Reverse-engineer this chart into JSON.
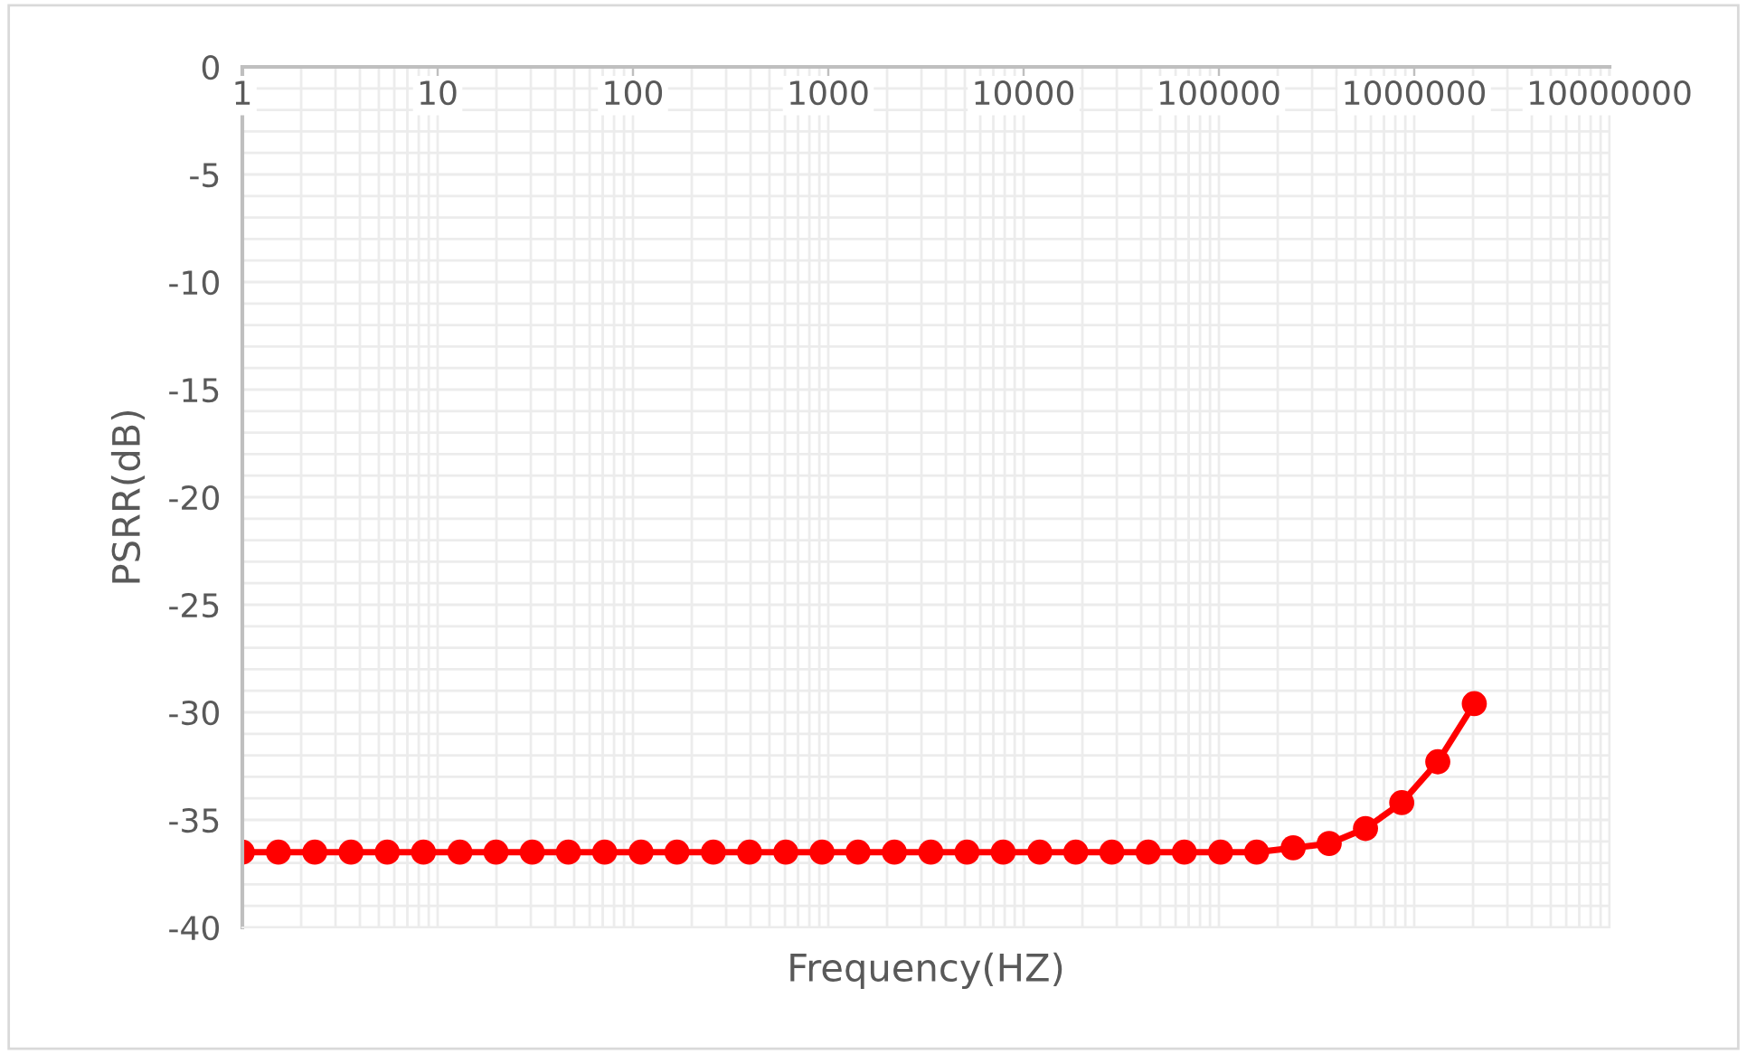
{
  "chart_data": {
    "type": "line",
    "xlabel": "Frequency(HZ)",
    "ylabel": "PSRR(dB)",
    "log": "x",
    "grid": true,
    "marker": "circle",
    "line_style": "solid",
    "x": [
      1,
      1.53,
      2.35,
      3.6,
      5.52,
      8.46,
      13,
      19.9,
      30.5,
      46.7,
      71.6,
      110,
      168,
      258,
      395,
      606,
      929,
      1420,
      2180,
      3350,
      5130,
      7860,
      12100,
      18500,
      28300,
      43400,
      66500,
      102000,
      156000,
      240000,
      367000,
      563000,
      863000,
      1320000,
      2030000
    ],
    "series": [
      {
        "color": "#ff0000",
        "values": [
          -36.5,
          -36.5,
          -36.5,
          -36.5,
          -36.5,
          -36.5,
          -36.5,
          -36.5,
          -36.5,
          -36.5,
          -36.5,
          -36.5,
          -36.5,
          -36.5,
          -36.5,
          -36.5,
          -36.5,
          -36.5,
          -36.5,
          -36.5,
          -36.5,
          -36.5,
          -36.5,
          -36.5,
          -36.5,
          -36.5,
          -36.5,
          -36.5,
          -36.5,
          -36.3,
          -36.1,
          -35.4,
          -34.2,
          -32.3,
          -29.6
        ]
      }
    ],
    "xlim": [
      1,
      10000000
    ],
    "xticks": [
      1,
      10,
      100,
      1000,
      10000,
      100000,
      1000000,
      10000000
    ],
    "ylim": [
      -40,
      0
    ],
    "yticks": [
      -40,
      -35,
      -30,
      -25,
      -20,
      -15,
      -10,
      -5,
      0
    ]
  }
}
